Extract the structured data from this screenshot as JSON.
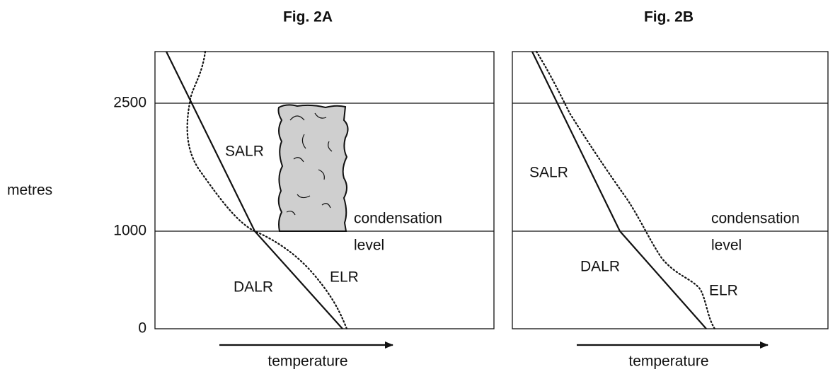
{
  "y_axis": {
    "label": "metres",
    "ticks": [
      "2500",
      "1000",
      "0"
    ]
  },
  "figures": [
    {
      "title": "Fig. 2A",
      "salr": "SALR",
      "dalr": "DALR",
      "elr": "ELR",
      "condensation": "condensation",
      "level": "level",
      "x_axis_label": "temperature"
    },
    {
      "title": "Fig. 2B",
      "salr": "SALR",
      "dalr": "DALR",
      "elr": "ELR",
      "condensation": "condensation",
      "level": "level",
      "x_axis_label": "temperature"
    }
  ]
}
